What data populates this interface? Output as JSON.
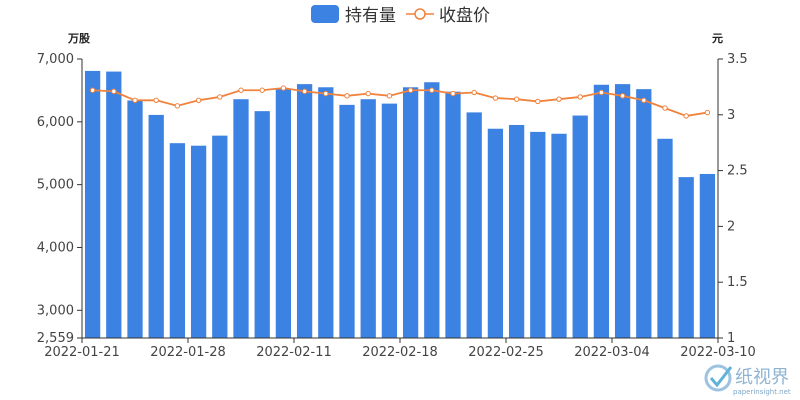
{
  "legend": {
    "bar_label": "持有量",
    "line_label": "收盘价",
    "placement": "top-center"
  },
  "watermark": {
    "text": "纸视界",
    "sub": "paperinsight.net"
  },
  "colors": {
    "bar": "#3b82e2",
    "line": "#f0823c",
    "axis": "#333333",
    "point_fill": "#ffffff"
  },
  "chart_data": {
    "type": "bar+line",
    "grid": false,
    "left_axis": {
      "unit": "万股",
      "min": 2559,
      "max": 7000,
      "ticks": [
        2559,
        3000,
        4000,
        5000,
        6000,
        7000
      ],
      "tick_labels": [
        "2,559",
        "3,000",
        "4,000",
        "5,000",
        "6,000",
        "7,000"
      ]
    },
    "right_axis": {
      "unit": "元",
      "min": 1,
      "max": 3.5,
      "ticks": [
        1,
        1.5,
        2,
        2.5,
        3,
        3.5
      ],
      "tick_labels": [
        "1",
        "1.5",
        "2",
        "2.5",
        "3",
        "3.5"
      ]
    },
    "x_tick_labels": [
      "2022-01-21",
      "2022-01-28",
      "2022-02-11",
      "2022-02-18",
      "2022-02-25",
      "2022-03-04",
      "2022-03-10"
    ],
    "x_tick_label_indices": [
      0,
      5,
      10,
      15,
      20,
      25,
      30
    ],
    "series": [
      {
        "type": "bar",
        "axis": "left",
        "values": [
          6810,
          6800,
          6340,
          6110,
          5660,
          5620,
          5780,
          6360,
          6170,
          6520,
          6600,
          6550,
          6270,
          6360,
          6290,
          6550,
          6630,
          6480,
          6150,
          5890,
          5950,
          5840,
          5810,
          6100,
          6590,
          6600,
          6520,
          5730,
          5120,
          5170
        ]
      },
      {
        "type": "line",
        "axis": "right",
        "values": [
          3.22,
          3.21,
          3.13,
          3.13,
          3.08,
          3.13,
          3.16,
          3.22,
          3.22,
          3.24,
          3.21,
          3.19,
          3.17,
          3.19,
          3.17,
          3.22,
          3.22,
          3.19,
          3.2,
          3.15,
          3.14,
          3.12,
          3.14,
          3.16,
          3.2,
          3.17,
          3.13,
          3.06,
          2.99,
          3.02
        ]
      }
    ]
  }
}
